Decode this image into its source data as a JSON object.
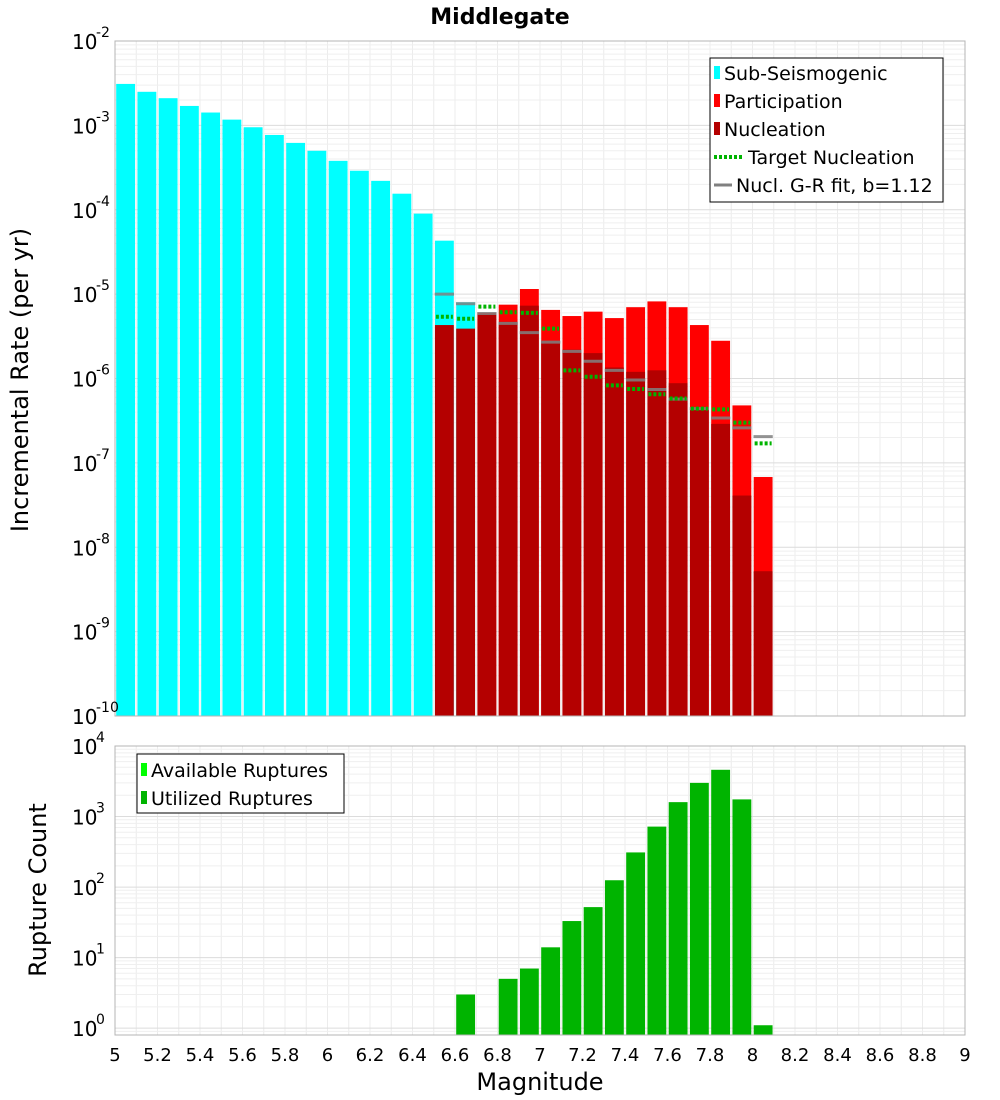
{
  "chart_data": [
    {
      "type": "bar",
      "title": "Middlegate",
      "xlabel": "",
      "ylabel": "Incremental Rate (per yr)",
      "yscale": "log",
      "xlim": [
        5,
        9
      ],
      "ylim": [
        1e-10,
        0.01
      ],
      "y_ticks": [
        {
          "base": "10",
          "exp": "-10",
          "value": 1e-10
        },
        {
          "base": "10",
          "exp": "-9",
          "value": 1e-09
        },
        {
          "base": "10",
          "exp": "-8",
          "value": 1e-08
        },
        {
          "base": "10",
          "exp": "-7",
          "value": 1e-07
        },
        {
          "base": "10",
          "exp": "-6",
          "value": 1e-06
        },
        {
          "base": "10",
          "exp": "-5",
          "value": 1e-05
        },
        {
          "base": "10",
          "exp": "-4",
          "value": 0.0001
        },
        {
          "base": "10",
          "exp": "-3",
          "value": 0.001
        },
        {
          "base": "10",
          "exp": "-2",
          "value": 0.01
        }
      ],
      "grid": true,
      "legend_position": "top-right",
      "colors": {
        "sub_seismogenic": "#00ffff",
        "participation": "#ff0000",
        "nucleation": "#b40000",
        "target_nucleation": "#00b400",
        "gr_fit": "#808080"
      },
      "legend": [
        {
          "label": "Sub-Seismogenic",
          "kind": "bar",
          "color": "#00ffff"
        },
        {
          "label": "Participation",
          "kind": "bar",
          "color": "#ff0000"
        },
        {
          "label": "Nucleation",
          "kind": "bar",
          "color": "#b40000"
        },
        {
          "label": "Target Nucleation",
          "kind": "dotted",
          "color": "#00b400"
        },
        {
          "label": "Nucl. G-R fit, b=1.12",
          "kind": "line",
          "color": "#808080"
        }
      ],
      "series": [
        {
          "name": "Sub-Seismogenic",
          "x": [
            5.05,
            5.15,
            5.25,
            5.35,
            5.45,
            5.55,
            5.65,
            5.75,
            5.85,
            5.95,
            6.05,
            6.15,
            6.25,
            6.35,
            6.45,
            6.55,
            6.65
          ],
          "values": [
            0.0031,
            0.0025,
            0.0021,
            0.0017,
            0.00142,
            0.00117,
            0.00095,
            0.00077,
            0.00062,
            0.0005,
            0.00038,
            0.00029,
            0.00022,
            0.000155,
            9e-05,
            4.3e-05,
            8e-06
          ]
        },
        {
          "name": "Participation",
          "x": [
            6.75,
            6.85,
            6.95,
            7.05,
            7.15,
            7.25,
            7.35,
            7.45,
            7.55,
            7.65,
            7.75,
            7.85,
            7.95,
            8.05
          ],
          "values": [
            6e-06,
            7.5e-06,
            1.15e-05,
            6.5e-06,
            5.5e-06,
            6.2e-06,
            5.2e-06,
            7e-06,
            8.2e-06,
            7e-06,
            4.3e-06,
            2.8e-06,
            4.8e-07,
            6.8e-08
          ]
        },
        {
          "name": "Nucleation",
          "x": [
            6.55,
            6.65,
            6.75,
            6.85,
            6.95,
            7.05,
            7.15,
            7.25,
            7.35,
            7.45,
            7.55,
            7.65,
            7.75,
            7.85,
            7.95,
            8.05
          ],
          "values": [
            4.3e-06,
            3.9e-06,
            5.8e-06,
            4.7e-06,
            7.3e-06,
            2.8e-06,
            2.2e-06,
            2e-06,
            1.35e-06,
            1.2e-06,
            1.25e-06,
            8.8e-07,
            4.3e-07,
            2.9e-07,
            4.1e-08,
            5.2e-09
          ]
        },
        {
          "name": "Target Nucleation",
          "x": [
            6.55,
            6.65,
            6.75,
            6.85,
            6.95,
            7.05,
            7.15,
            7.25,
            7.35,
            7.45,
            7.55,
            7.65,
            7.75,
            7.85,
            7.95,
            8.05
          ],
          "values": [
            5.4e-06,
            5.1e-06,
            7.1e-06,
            6.1e-06,
            6e-06,
            3.9e-06,
            1.25e-06,
            1.05e-06,
            8.3e-07,
            7.5e-07,
            6.5e-07,
            5.8e-07,
            4.4e-07,
            4.3e-07,
            3e-07,
            1.7e-07
          ]
        },
        {
          "name": "Nucl. G-R fit, b=1.12",
          "x": [
            6.55,
            6.65,
            6.75,
            6.85,
            6.95,
            7.05,
            7.15,
            7.25,
            7.35,
            7.45,
            7.55,
            7.65,
            7.75,
            7.85,
            7.95,
            8.05
          ],
          "values": [
            1e-05,
            7.7e-06,
            5.9e-06,
            4.5e-06,
            3.5e-06,
            2.7e-06,
            2.1e-06,
            1.6e-06,
            1.25e-06,
            9.6e-07,
            7.4e-07,
            5.7e-07,
            4.4e-07,
            3.4e-07,
            2.6e-07,
            2.05e-07
          ]
        }
      ]
    },
    {
      "type": "bar",
      "title": "",
      "xlabel": "Magnitude",
      "ylabel": "Rupture Count",
      "yscale": "log",
      "xlim": [
        5,
        9
      ],
      "ylim": [
        0.8,
        10000
      ],
      "x_ticks": [
        "5",
        "5.2",
        "5.4",
        "5.6",
        "5.8",
        "6",
        "6.2",
        "6.4",
        "6.6",
        "6.8",
        "7",
        "7.2",
        "7.4",
        "7.6",
        "7.8",
        "8",
        "8.2",
        "8.4",
        "8.6",
        "8.8",
        "9"
      ],
      "y_ticks": [
        {
          "base": "10",
          "exp": "0",
          "value": 1
        },
        {
          "base": "10",
          "exp": "1",
          "value": 10
        },
        {
          "base": "10",
          "exp": "2",
          "value": 100
        },
        {
          "base": "10",
          "exp": "3",
          "value": 1000
        },
        {
          "base": "10",
          "exp": "4",
          "value": 10000
        }
      ],
      "grid": true,
      "legend_position": "top-left",
      "colors": {
        "available": "#00ff00",
        "utilized": "#00b400"
      },
      "legend": [
        {
          "label": "Available Ruptures",
          "kind": "bar",
          "color": "#00ff00"
        },
        {
          "label": "Utilized Ruptures",
          "kind": "bar",
          "color": "#00b400"
        }
      ],
      "series": [
        {
          "name": "Utilized Ruptures",
          "x": [
            6.65,
            6.85,
            6.95,
            7.05,
            7.15,
            7.25,
            7.35,
            7.45,
            7.55,
            7.65,
            7.75,
            7.85,
            7.95,
            8.05
          ],
          "values": [
            3,
            5,
            7,
            14,
            33,
            52,
            125,
            310,
            720,
            1600,
            3000,
            4600,
            1750,
            1.1
          ]
        }
      ]
    }
  ]
}
